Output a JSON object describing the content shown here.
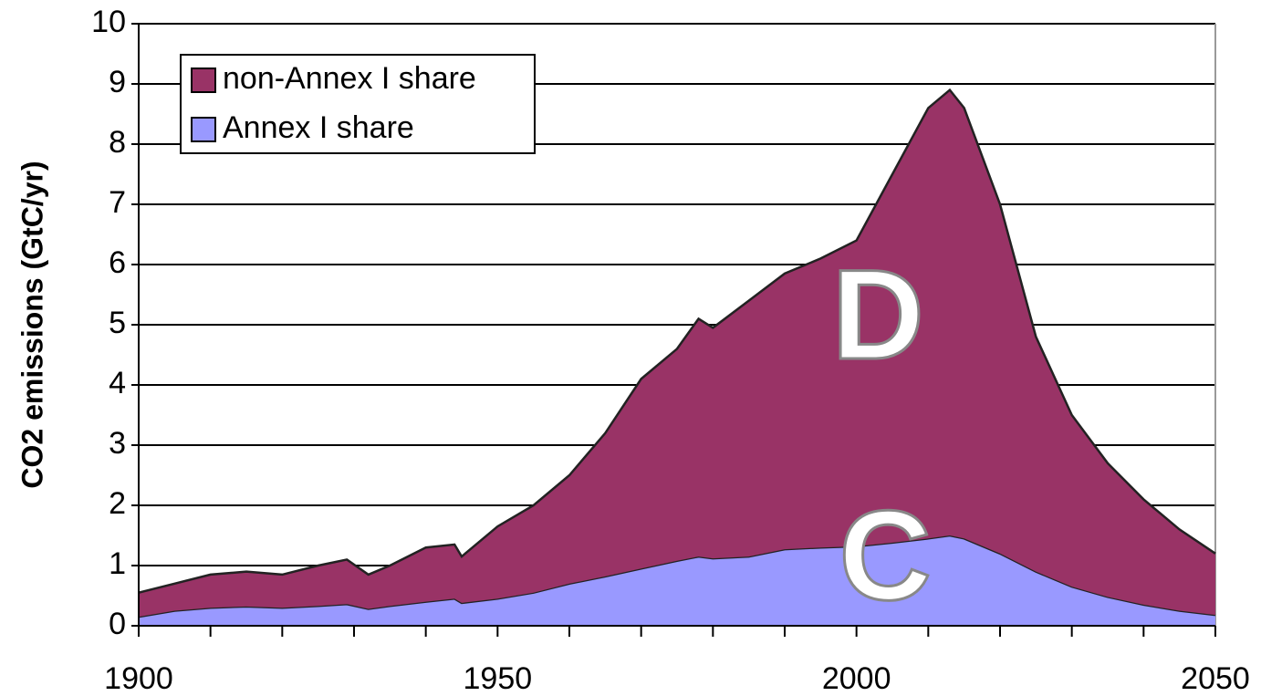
{
  "chart_data": {
    "type": "stacked_area",
    "y_label": "CO2 emissions (GtC/yr)",
    "x": [
      1900,
      1905,
      1910,
      1915,
      1920,
      1925,
      1929,
      1932,
      1935,
      1940,
      1944,
      1945,
      1950,
      1955,
      1960,
      1965,
      1970,
      1975,
      1978,
      1980,
      1985,
      1990,
      1995,
      2000,
      2005,
      2010,
      2013,
      2015,
      2020,
      2025,
      2030,
      2035,
      2040,
      2045,
      2050
    ],
    "series": [
      {
        "name": "Annex I share",
        "color": "#9999ff",
        "values": [
          0.15,
          0.25,
          0.3,
          0.32,
          0.3,
          0.33,
          0.36,
          0.28,
          0.33,
          0.4,
          0.45,
          0.38,
          0.45,
          0.55,
          0.7,
          0.82,
          0.95,
          1.08,
          1.15,
          1.12,
          1.15,
          1.27,
          1.3,
          1.32,
          1.38,
          1.45,
          1.5,
          1.45,
          1.2,
          0.9,
          0.65,
          0.48,
          0.35,
          0.25,
          0.18
        ]
      },
      {
        "name": "non-Annex I share",
        "color": "#993366",
        "values": [
          0.4,
          0.45,
          0.55,
          0.58,
          0.55,
          0.67,
          0.74,
          0.57,
          0.67,
          0.9,
          0.9,
          0.77,
          1.2,
          1.45,
          1.8,
          2.38,
          3.15,
          3.52,
          3.95,
          3.83,
          4.25,
          4.58,
          4.8,
          5.08,
          6.12,
          7.15,
          7.4,
          7.15,
          5.8,
          3.9,
          2.85,
          2.22,
          1.75,
          1.35,
          1.02
        ]
      }
    ],
    "xlim": [
      1900,
      2050
    ],
    "xticks": [
      1900,
      1950,
      2000,
      2050
    ],
    "xticks_minor": [
      1910,
      1920,
      1930,
      1940,
      1960,
      1970,
      1980,
      1990,
      2010,
      2020,
      2030,
      2040
    ],
    "ylim": [
      0,
      10
    ],
    "yticks": [
      0,
      1,
      2,
      3,
      4,
      5,
      6,
      7,
      8,
      9,
      10
    ],
    "grid": true,
    "legend": "top-left",
    "annotations": [
      {
        "text": "D",
        "x": 2003,
        "y": 5
      },
      {
        "text": "C",
        "x": 2004,
        "y": 1
      }
    ]
  }
}
